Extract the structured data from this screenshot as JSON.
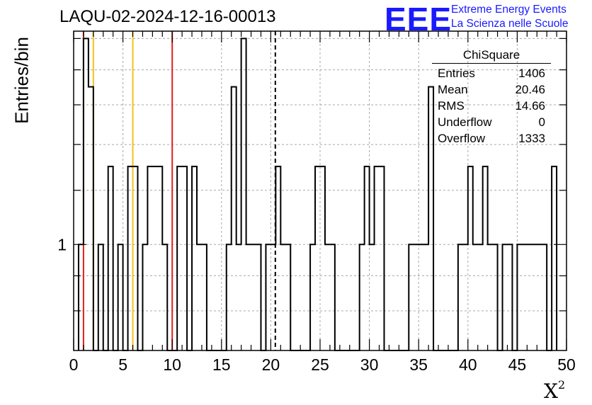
{
  "title": "LAQU-02-2024-12-16-00013",
  "logo": {
    "mark": "EEE",
    "line1": "Extreme Energy Events",
    "line2": "La Scienza nelle Scuole",
    "color": "#1a1aff"
  },
  "axes": {
    "ylabel": "Entries/bin",
    "xlabel_base": "X",
    "xlabel_exp": "2"
  },
  "stats": {
    "name": "ChiSquare",
    "rows": [
      {
        "label": "Entries",
        "value": "1406"
      },
      {
        "label": "Mean",
        "value": "20.46"
      },
      {
        "label": "RMS",
        "value": "14.66"
      },
      {
        "label": "Underflow",
        "value": "0"
      },
      {
        "label": "Overflow",
        "value": "1333"
      }
    ]
  },
  "chart_data": {
    "type": "histogram",
    "x_range": [
      0,
      50
    ],
    "y_scale": "log",
    "y_range": [
      0.7,
      2.05
    ],
    "x_ticks": [
      0,
      5,
      10,
      15,
      20,
      25,
      30,
      35,
      40,
      45,
      50
    ],
    "y_tick_labels": [
      {
        "value": 1,
        "label": "1"
      }
    ],
    "grid": true,
    "bin_width": 0.5,
    "bins_x_start": [
      0.5,
      1,
      1.5,
      2,
      2.5,
      3,
      3.5,
      4,
      4.5,
      5,
      5.5,
      6,
      6.5,
      7,
      7.5,
      8,
      8.5,
      9,
      9.5,
      10,
      10.5,
      11,
      11.5,
      12,
      12.5,
      13,
      13.5,
      14,
      14.5,
      15,
      15.5,
      16,
      16.5,
      17,
      17.5,
      18,
      18.5,
      19,
      19.5,
      20,
      20.5,
      21,
      21.5,
      22,
      22.5,
      23,
      23.5,
      24,
      24.5,
      25,
      25.5,
      26,
      26.5,
      27,
      27.5,
      28,
      28.5,
      29,
      29.5,
      30,
      30.5,
      31,
      31.5,
      32,
      32.5,
      33,
      33.5,
      34,
      34.5,
      35,
      35.5,
      36,
      36.5,
      37,
      37.5,
      38,
      38.5,
      39,
      39.5,
      40,
      40.5,
      41,
      41.5,
      42,
      42.5,
      43,
      43.5,
      44,
      44.5,
      45,
      45.5,
      46,
      46.5,
      47,
      47.5,
      48,
      48.5
    ],
    "bins_count": [
      1,
      2,
      1.7,
      0,
      1,
      0,
      1.3,
      0,
      1,
      0,
      1.3,
      1.3,
      0,
      1,
      1.3,
      1.3,
      1.3,
      1,
      0,
      0,
      1.3,
      1.3,
      0,
      1.3,
      1,
      1,
      0,
      0,
      0,
      0,
      1,
      1.7,
      1,
      2,
      1,
      1,
      1,
      0,
      1,
      1,
      1.3,
      1,
      1,
      0,
      0,
      0,
      0,
      1,
      1.3,
      1.3,
      1,
      1,
      0,
      0,
      0,
      0,
      0,
      1,
      1.3,
      1,
      1.3,
      1.3,
      0,
      0,
      0,
      0,
      0,
      1,
      1,
      1,
      1,
      1.7,
      0,
      0,
      0,
      0,
      0,
      1,
      1,
      1.3,
      1,
      1,
      1.3,
      1,
      1,
      0,
      1,
      1,
      0,
      1,
      1,
      1,
      1,
      1,
      1,
      0,
      1.3
    ],
    "reference_lines": [
      {
        "x": 1,
        "color": "#e0201b"
      },
      {
        "x": 2,
        "color": "#f2c21b"
      },
      {
        "x": 6,
        "color": "#f2c21b"
      },
      {
        "x": 10,
        "color": "#e0201b"
      }
    ],
    "mean_line": {
      "x": 20.46,
      "style": "dashed",
      "color": "#000000"
    }
  }
}
